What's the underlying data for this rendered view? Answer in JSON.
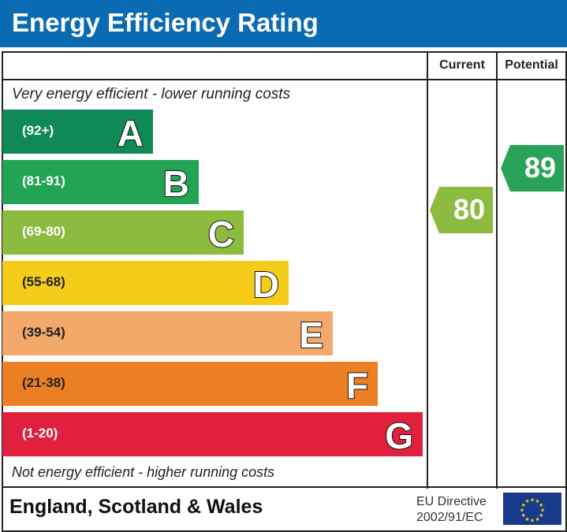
{
  "title": "Energy Efficiency Rating",
  "columns": {
    "current": "Current",
    "potential": "Potential"
  },
  "top_note": "Very energy efficient - lower running costs",
  "bottom_note": "Not energy efficient - higher running costs",
  "footer": {
    "region": "England, Scotland & Wales",
    "directive_line1": "EU Directive",
    "directive_line2": "2002/91/EC",
    "flag_icon": "eu-flag-icon"
  },
  "header_color": "#0a6bb3",
  "chart_data": {
    "type": "bar",
    "bands": [
      {
        "letter": "A",
        "range": "(92+)",
        "color": "#0f8a55"
      },
      {
        "letter": "B",
        "range": "(81-91)",
        "color": "#23a455"
      },
      {
        "letter": "C",
        "range": "(69-80)",
        "color": "#8dbb3f"
      },
      {
        "letter": "D",
        "range": "(55-68)",
        "color": "#f5cc19"
      },
      {
        "letter": "E",
        "range": "(39-54)",
        "color": "#f2a96a"
      },
      {
        "letter": "F",
        "range": "(21-38)",
        "color": "#ec7f24"
      },
      {
        "letter": "G",
        "range": "(1-20)",
        "color": "#e0203c"
      }
    ],
    "current": {
      "value": 80,
      "band": "C",
      "color": "#8dbb3f"
    },
    "potential": {
      "value": 89,
      "band": "B",
      "color": "#2aa35a"
    }
  }
}
